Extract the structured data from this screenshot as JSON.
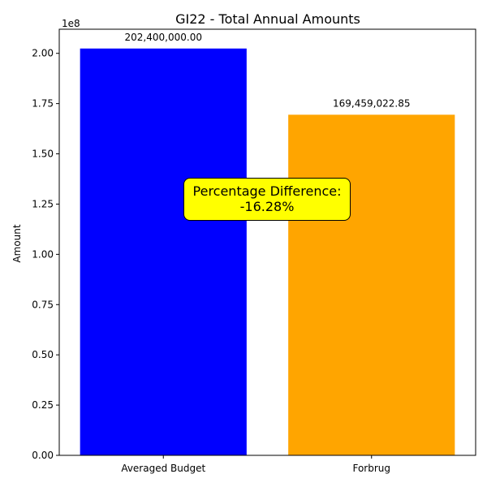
{
  "chart_data": {
    "type": "bar",
    "title": "GI22 - Total Annual Amounts",
    "xlabel": "",
    "ylabel": "Amount",
    "y_scale_label": "1e8",
    "categories": [
      "Averaged Budget",
      "Forbrug"
    ],
    "values": [
      202400000.0,
      169459022.85
    ],
    "value_labels": [
      "202,400,000.00",
      "169,459,022.85"
    ],
    "colors": [
      "#0000ff",
      "#ffa500"
    ],
    "ylim": [
      0,
      212000000
    ],
    "yticks": [
      0,
      25000000,
      50000000,
      75000000,
      100000000,
      125000000,
      150000000,
      175000000,
      200000000
    ],
    "ytick_labels": [
      "0.00",
      "0.25",
      "0.50",
      "0.75",
      "1.00",
      "1.25",
      "1.50",
      "1.75",
      "2.00"
    ],
    "grid": false,
    "annotation": {
      "line1": "Percentage Difference:",
      "line2": "-16.28%",
      "background": "#ffff00"
    }
  }
}
